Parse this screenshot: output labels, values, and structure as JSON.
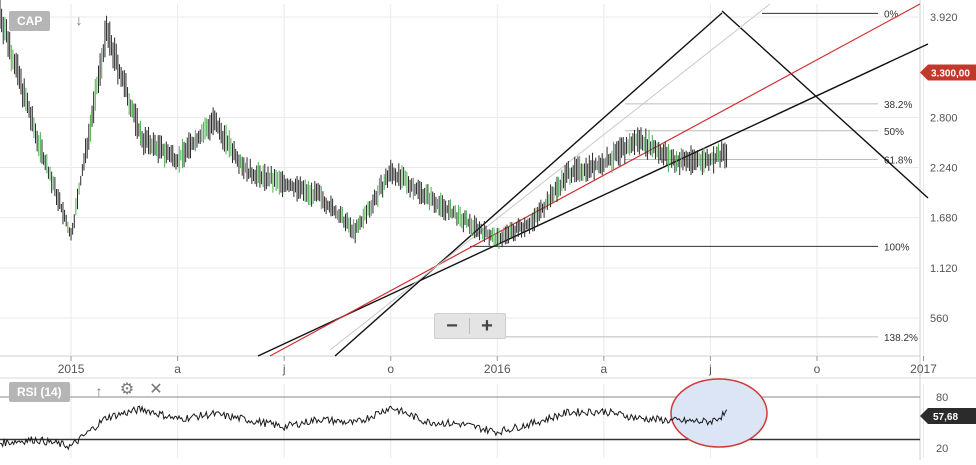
{
  "colors": {
    "price": "#2a2a2a",
    "up_candle": "#4caf50",
    "trendline": "#111111",
    "regression": "#d32f2f",
    "channel_light": "#c8c8c8",
    "price_tag": "#c0392b",
    "rsi_tag": "#2b2b2b",
    "highlight_fill": "#dbe5f5",
    "highlight_stroke": "#d03a3a",
    "grid": "#e9e9e9"
  },
  "toolbar": {
    "symbol_label": "CAP",
    "download_icon": "arrow-down-icon",
    "rsi_label": "RSI (14)",
    "move_up_icon": "arrow-up-icon",
    "settings_icon": "gear-icon",
    "close_icon": "close-icon",
    "zoom_out_label": "−",
    "zoom_in_label": "+"
  },
  "chart_data": [
    {
      "type": "line",
      "series_style": "ohlc-bars",
      "x_tick_labels": [
        "2015",
        "a",
        "j",
        "o",
        "2016",
        "a",
        "j",
        "o",
        "2017"
      ],
      "y_tick_labels": [
        "3.920",
        "2.800",
        "2.240",
        "1.680",
        "1.120",
        "560"
      ],
      "ylim": [
        0,
        4050
      ],
      "grid": true,
      "price_tag": "3.300,00",
      "dates": [
        "2014-12",
        "2015-01",
        "2015-02",
        "2015-03",
        "2015-04",
        "2015-05",
        "2015-06",
        "2015-07",
        "2015-08",
        "2015-09",
        "2015-10",
        "2015-11",
        "2015-12",
        "2016-01",
        "2016-02",
        "2016-03",
        "2016-04",
        "2016-05",
        "2016-06",
        "2016-07",
        "2016-08",
        "2016-09",
        "2016-10"
      ],
      "values": [
        3960,
        2620,
        1470,
        3750,
        2560,
        2330,
        2750,
        2180,
        2060,
        1920,
        1520,
        2190,
        1930,
        1660,
        1440,
        1640,
        2180,
        2280,
        2560,
        2310,
        2330,
        2460,
        3560
      ],
      "fibonacci_levels": [
        {
          "label": "0%",
          "value": 3960
        },
        {
          "label": "38.2%",
          "value": 2950
        },
        {
          "label": "50%",
          "value": 2650
        },
        {
          "label": "61.8%",
          "value": 2330
        },
        {
          "label": "100%",
          "value": 1360
        },
        {
          "label": "138.2%",
          "value": 350
        }
      ]
    },
    {
      "type": "line",
      "title": "RSI (14)",
      "y_tick_labels": [
        "80",
        "20"
      ],
      "ylim": [
        0,
        100
      ],
      "value_tag": "57,68",
      "reference_lines": [
        80,
        30
      ],
      "dates": [
        "2014-12",
        "2015-01",
        "2015-02",
        "2015-03",
        "2015-04",
        "2015-05",
        "2015-06",
        "2015-07",
        "2015-08",
        "2015-09",
        "2015-10",
        "2015-11",
        "2015-12",
        "2016-01",
        "2016-02",
        "2016-03",
        "2016-04",
        "2016-05",
        "2016-06",
        "2016-07",
        "2016-08",
        "2016-09",
        "2016-10"
      ],
      "values": [
        26,
        30,
        22,
        56,
        66,
        54,
        60,
        53,
        45,
        54,
        49,
        68,
        51,
        48,
        39,
        49,
        62,
        63,
        55,
        52,
        51,
        72,
        58
      ]
    }
  ]
}
